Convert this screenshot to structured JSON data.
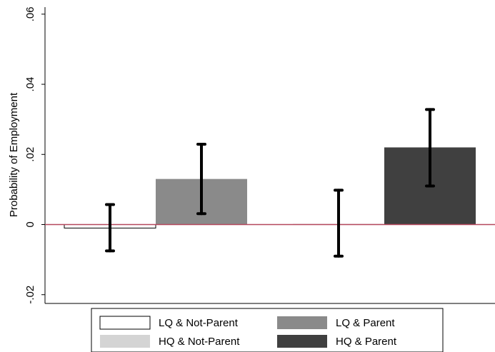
{
  "chart_data": {
    "type": "bar",
    "y_label": "Probability of Employment",
    "ylim": [
      -0.0225,
      0.062
    ],
    "yticks": [
      {
        "value": -0.02,
        "label": "-.02"
      },
      0,
      {
        "value": 0.02,
        "label": ".02"
      },
      {
        "value": 0.04,
        "label": ".04"
      },
      {
        "value": 0.06,
        "label": ".06"
      }
    ],
    "yline": 0,
    "yline_color": "#b5485d",
    "series": [
      {
        "name": "LQ & Not-Parent",
        "color": "#ffffff",
        "values": [
          -0.001
        ],
        "ci_low": [
          -0.0075
        ],
        "ci_high": [
          0.0057
        ]
      },
      {
        "name": "LQ & Parent",
        "color": "#8a8a8a",
        "values": [
          0.013
        ],
        "ci_low": [
          0.0031
        ],
        "ci_high": [
          0.0229
        ]
      },
      {
        "name": "HQ & Not-Parent",
        "color": "#d4d4d4",
        "values": [
          0.0002
        ],
        "ci_low": [
          -0.009
        ],
        "ci_high": [
          0.0098
        ]
      },
      {
        "name": "HQ & Parent",
        "color": "#404040",
        "values": [
          0.022
        ],
        "ci_low": [
          0.011
        ],
        "ci_high": [
          0.0328
        ]
      }
    ]
  }
}
